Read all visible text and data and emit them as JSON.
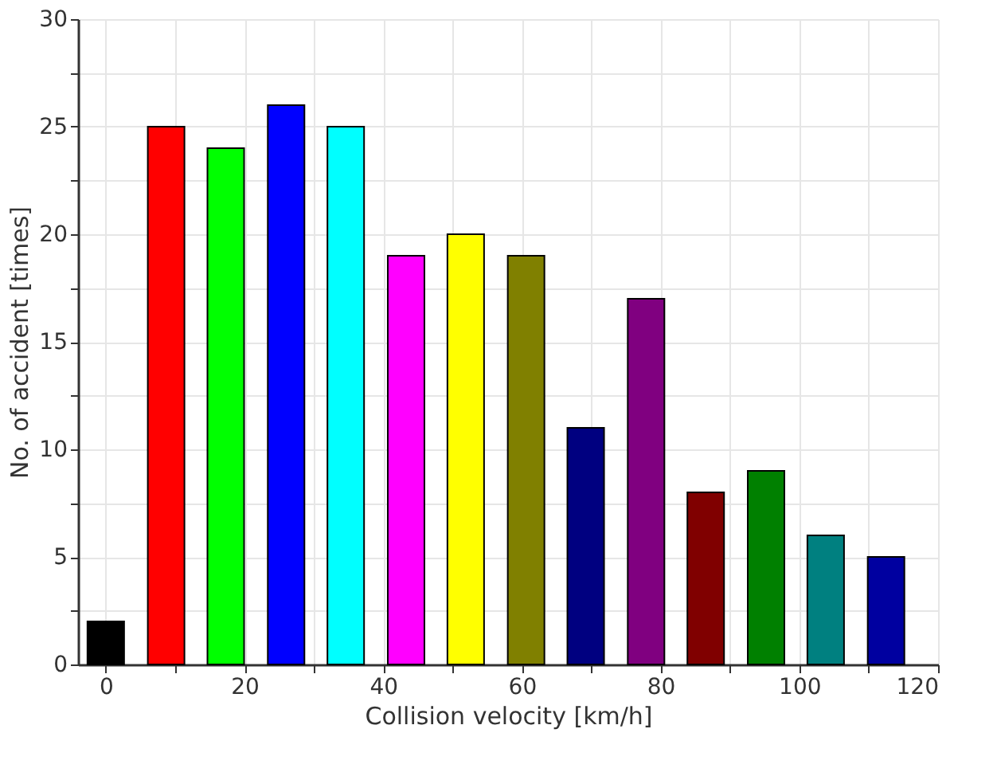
{
  "chart_data": {
    "type": "bar",
    "xlabel": "Collision velocity [km/h]",
    "ylabel": "No. of accident [times]",
    "x": [
      0,
      8.7,
      17.3,
      26,
      34.6,
      43.3,
      51.9,
      60.6,
      69.2,
      77.9,
      86.5,
      95.2,
      103.8,
      112.5
    ],
    "values": [
      2,
      25,
      24,
      26,
      25,
      19,
      20,
      19,
      11,
      17,
      8,
      9,
      6,
      5
    ],
    "colors": [
      "#000000",
      "#ff0000",
      "#00ff00",
      "#0000ff",
      "#00ffff",
      "#ff00ff",
      "#ffff00",
      "#808000",
      "#000080",
      "#800080",
      "#800000",
      "#008000",
      "#008080",
      "#0000a0"
    ],
    "xlim": [
      -4,
      120
    ],
    "ylim": [
      0,
      30
    ],
    "xticks": [
      0,
      {
        "value": 10,
        "label": null
      },
      20,
      {
        "value": 30,
        "label": null
      },
      40,
      {
        "value": 50,
        "label": null
      },
      60,
      {
        "value": 70,
        "label": null
      },
      80,
      {
        "value": 90,
        "label": null
      },
      100,
      {
        "value": 110,
        "label": null
      },
      120
    ],
    "yticks": [
      0,
      {
        "value": 2.5,
        "label": null
      },
      5,
      {
        "value": 7.5,
        "label": null
      },
      10,
      {
        "value": 12.5,
        "label": null
      },
      15,
      {
        "value": 17.5,
        "label": null
      },
      20,
      {
        "value": 22.5,
        "label": null
      },
      25,
      {
        "value": 27.5,
        "label": null
      },
      30
    ],
    "grid": true,
    "legend": false
  }
}
